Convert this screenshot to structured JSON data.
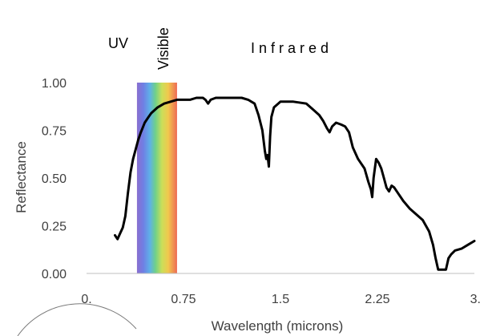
{
  "chart_data": {
    "type": "line",
    "title": "",
    "xlabel": "Wavelength (microns)",
    "ylabel": "Reflectance",
    "xlim": [
      0,
      3
    ],
    "ylim": [
      0,
      1
    ],
    "x_ticks": [
      {
        "value": 0,
        "label": "0."
      },
      {
        "value": 0.75,
        "label": "0.75"
      },
      {
        "value": 1.5,
        "label": "1.5"
      },
      {
        "value": 2.25,
        "label": "2.25"
      },
      {
        "value": 3,
        "label": "3."
      }
    ],
    "y_ticks": [
      {
        "value": 0,
        "label": "0.00"
      },
      {
        "value": 0.25,
        "label": "0.25"
      },
      {
        "value": 0.5,
        "label": "0.50"
      },
      {
        "value": 0.75,
        "label": "0.75"
      },
      {
        "value": 1,
        "label": "1.00"
      }
    ],
    "grid": false,
    "visible_band": {
      "from": 0.39,
      "to": 0.7
    },
    "region_labels": [
      {
        "text": "UV"
      },
      {
        "text": "Visible",
        "rotated": true
      },
      {
        "text": "I n f r a r e d"
      }
    ],
    "series": [
      {
        "color": "#000000",
        "x": [
          0.22,
          0.24,
          0.26,
          0.28,
          0.3,
          0.32,
          0.34,
          0.36,
          0.38,
          0.4,
          0.42,
          0.45,
          0.48,
          0.5,
          0.55,
          0.6,
          0.65,
          0.7,
          0.75,
          0.8,
          0.85,
          0.9,
          0.92,
          0.94,
          0.96,
          1.0,
          1.05,
          1.1,
          1.15,
          1.2,
          1.25,
          1.3,
          1.33,
          1.36,
          1.38,
          1.39,
          1.4,
          1.41,
          1.42,
          1.43,
          1.45,
          1.5,
          1.6,
          1.7,
          1.75,
          1.8,
          1.83,
          1.86,
          1.88,
          1.9,
          1.93,
          1.97,
          2.0,
          2.03,
          2.06,
          2.1,
          2.15,
          2.18,
          2.2,
          2.21,
          2.22,
          2.24,
          2.26,
          2.28,
          2.3,
          2.32,
          2.34,
          2.36,
          2.38,
          2.4,
          2.45,
          2.5,
          2.55,
          2.6,
          2.65,
          2.68,
          2.7,
          2.72,
          2.75,
          2.78,
          2.8,
          2.82,
          2.85,
          2.9,
          2.95,
          3.0
        ],
        "y": [
          0.2,
          0.18,
          0.21,
          0.24,
          0.3,
          0.42,
          0.53,
          0.6,
          0.65,
          0.7,
          0.74,
          0.79,
          0.82,
          0.84,
          0.87,
          0.89,
          0.9,
          0.91,
          0.91,
          0.91,
          0.92,
          0.92,
          0.91,
          0.89,
          0.91,
          0.92,
          0.92,
          0.92,
          0.92,
          0.92,
          0.91,
          0.89,
          0.83,
          0.75,
          0.64,
          0.6,
          0.62,
          0.56,
          0.72,
          0.82,
          0.87,
          0.9,
          0.9,
          0.89,
          0.86,
          0.83,
          0.8,
          0.76,
          0.74,
          0.77,
          0.79,
          0.78,
          0.77,
          0.74,
          0.66,
          0.6,
          0.55,
          0.48,
          0.44,
          0.4,
          0.5,
          0.6,
          0.58,
          0.55,
          0.5,
          0.45,
          0.43,
          0.46,
          0.45,
          0.43,
          0.38,
          0.34,
          0.31,
          0.28,
          0.22,
          0.15,
          0.08,
          0.02,
          0.02,
          0.02,
          0.08,
          0.1,
          0.12,
          0.13,
          0.15,
          0.17
        ]
      }
    ]
  }
}
